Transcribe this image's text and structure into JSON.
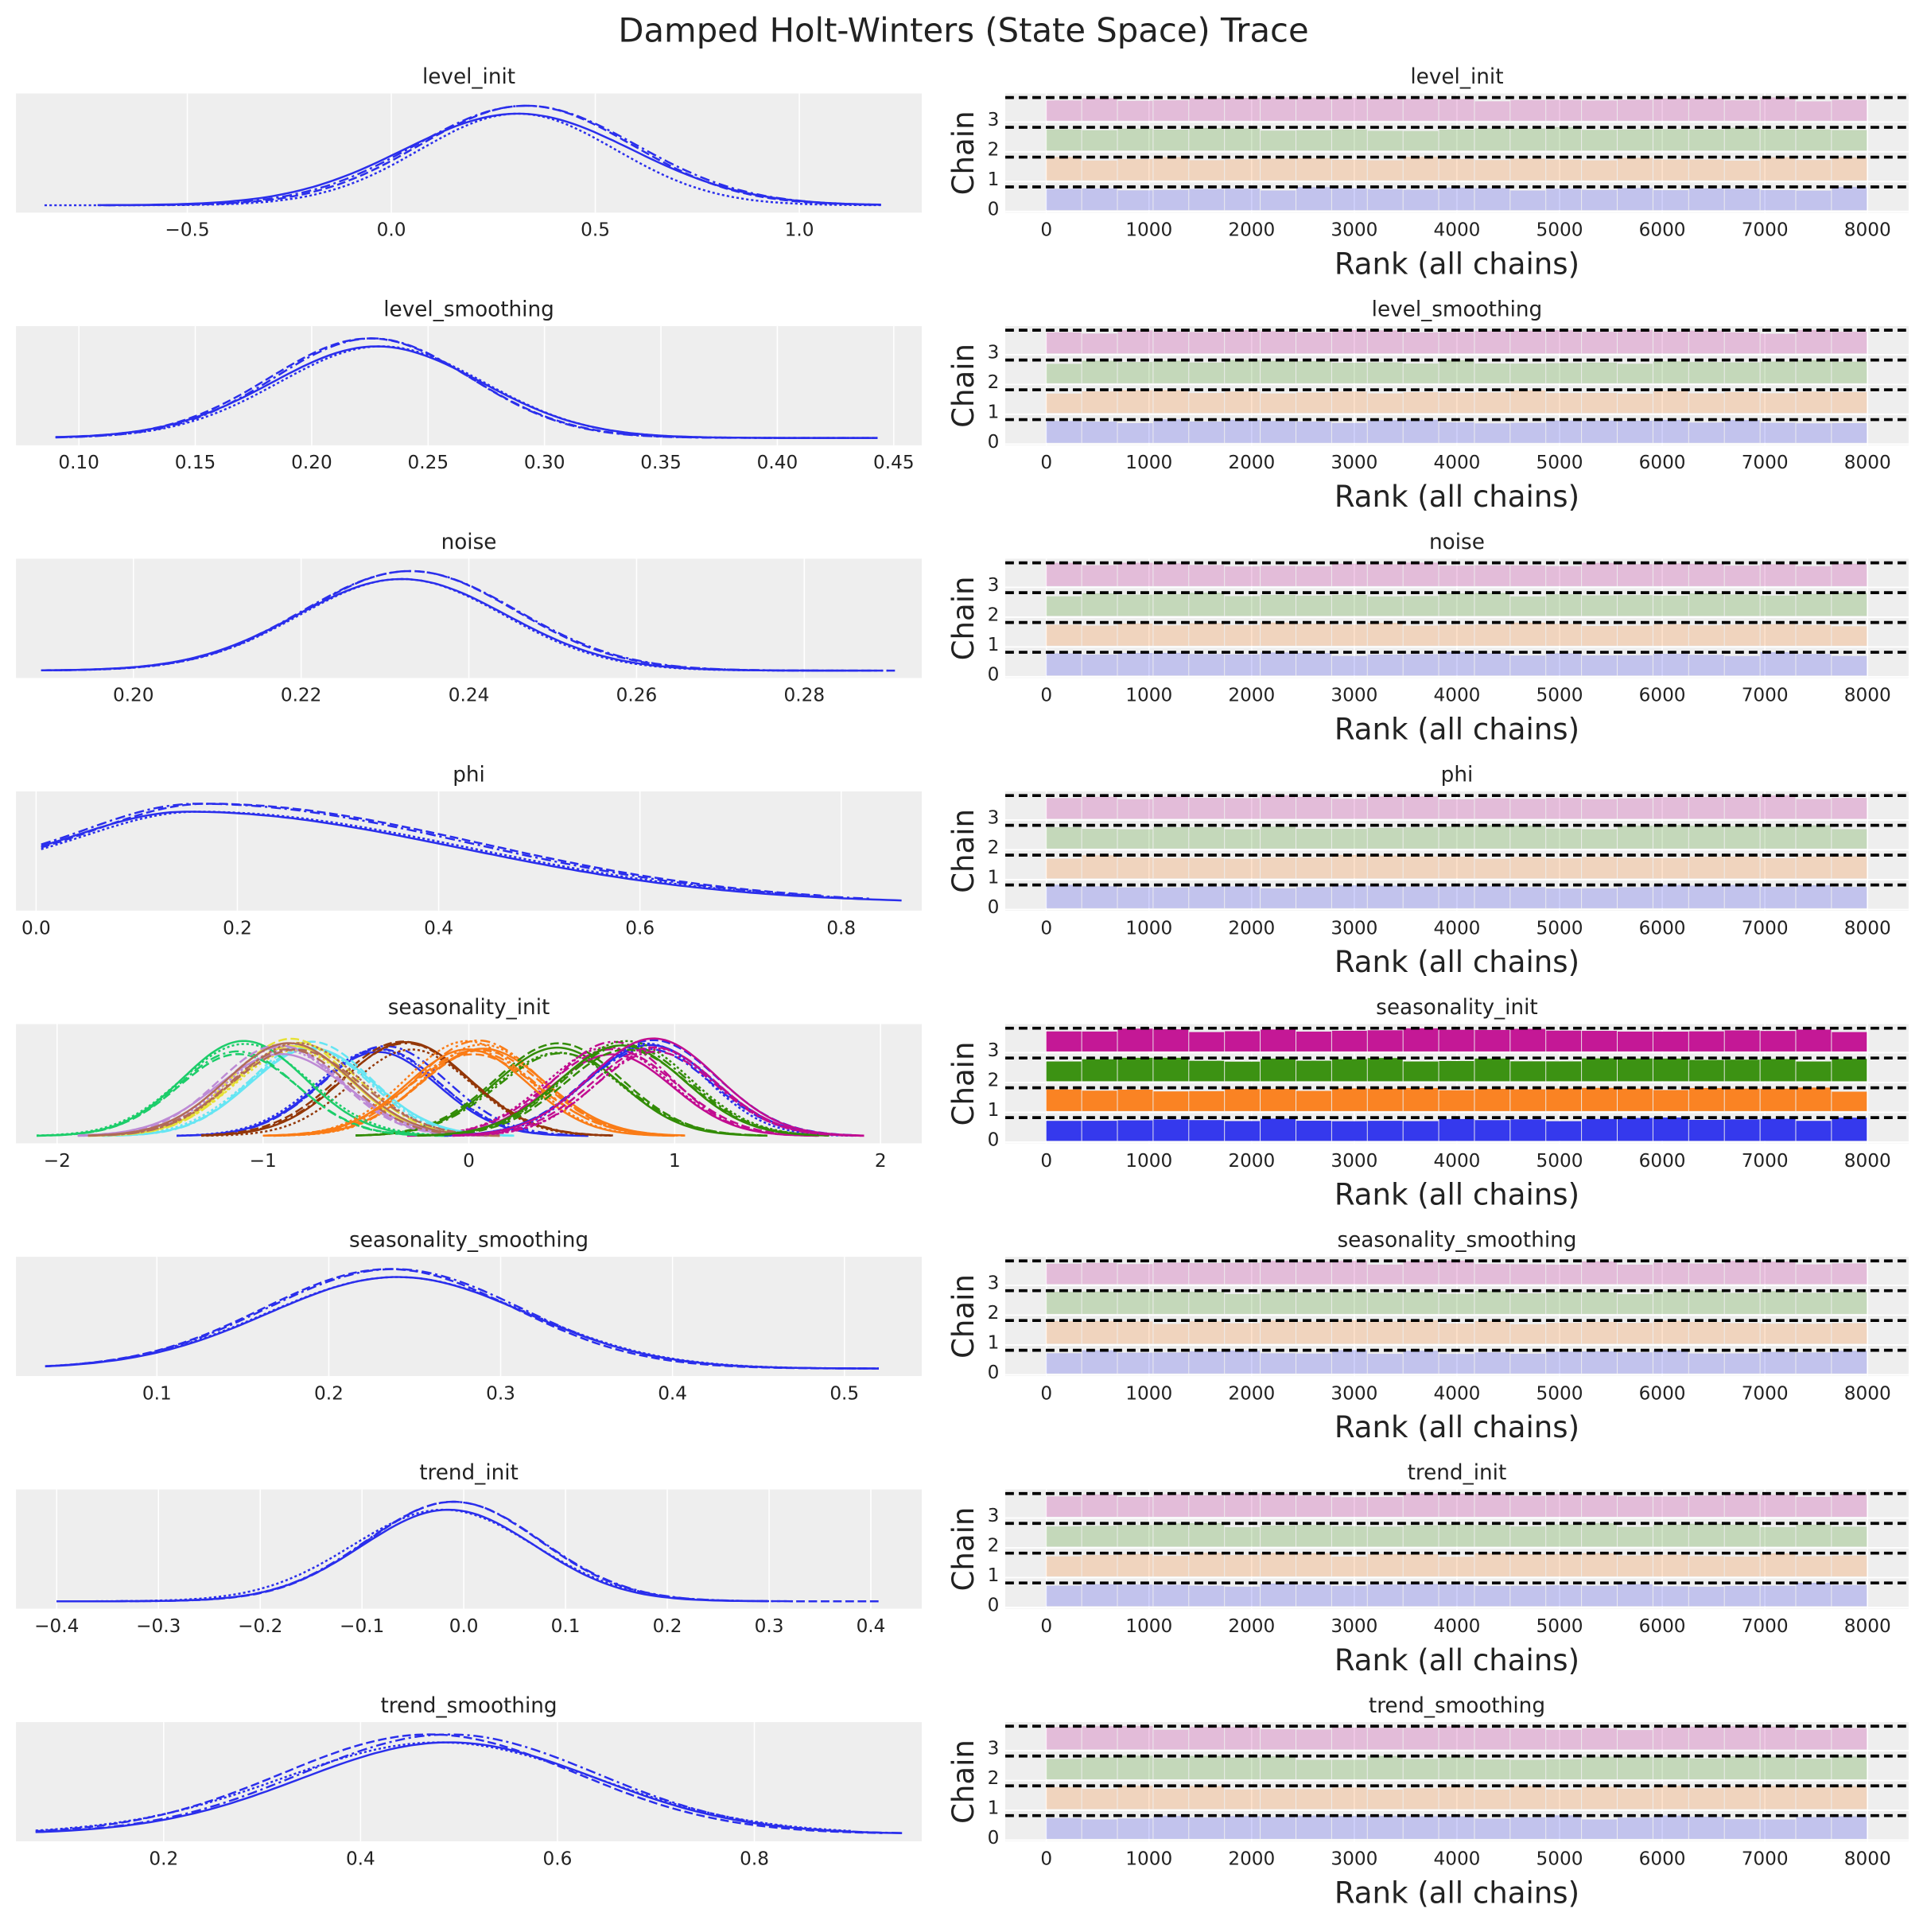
{
  "chart_data": {
    "type": "trace",
    "title": "Damped Holt-Winters (State Space) Trace",
    "colors": {
      "panel_bg": "#eeeeee",
      "grid": "#ffffff",
      "kde_default": "#2a2eec",
      "rank_chain_colors": [
        "#2a2eec",
        "#fa7c17",
        "#328c06",
        "#c10c90"
      ],
      "seasonality_palette": [
        "#2a2eec",
        "#fa7c17",
        "#328c06",
        "#c10c90",
        "#933708",
        "#65e5f3",
        "#e6e135",
        "#1ccd6a",
        "#bd8ad5",
        "#b16b57"
      ]
    },
    "rank_common": {
      "ylabel": "Chain",
      "xlabel": "Rank (all chains)",
      "xticks": [
        "0",
        "1000",
        "2000",
        "3000",
        "4000",
        "5000",
        "6000",
        "7000",
        "8000"
      ],
      "xtick_values": [
        0,
        1000,
        2000,
        3000,
        4000,
        5000,
        6000,
        7000,
        8000
      ],
      "xlim": [
        -400,
        8400
      ],
      "yticks": [
        "0",
        "1",
        "2",
        "3"
      ],
      "chains": 4,
      "bins": 23
    },
    "panels": [
      {
        "name": "level_init",
        "xlim": [
          -0.92,
          1.3
        ],
        "xticks": [
          -0.5,
          0.0,
          0.5,
          1.0
        ],
        "xtick_labels": [
          "−0.5",
          "0.0",
          "0.5",
          "1.0"
        ],
        "kde": [
          {
            "mu": 0.31,
            "sd": 0.28,
            "lo": -0.72,
            "hi": 1.2
          },
          {
            "mu": 0.33,
            "sd": 0.26,
            "lo": -0.7,
            "hi": 1.2
          },
          {
            "mu": 0.31,
            "sd": 0.24,
            "lo": -0.85,
            "hi": 1.2
          },
          {
            "mu": 0.33,
            "sd": 0.27,
            "lo": -0.7,
            "hi": 1.2
          }
        ],
        "rank_highlight": false
      },
      {
        "name": "level_smoothing",
        "xlim": [
          0.073,
          0.462
        ],
        "xticks": [
          0.1,
          0.15,
          0.2,
          0.25,
          0.3,
          0.35,
          0.4,
          0.45
        ],
        "xtick_labels": [
          "0.10",
          "0.15",
          "0.20",
          "0.25",
          "0.30",
          "0.35",
          "0.40",
          "0.45"
        ],
        "kde": [
          {
            "mu": 0.228,
            "sd": 0.045,
            "lo": 0.09,
            "hi": 0.443
          },
          {
            "mu": 0.225,
            "sd": 0.043,
            "lo": 0.09,
            "hi": 0.443
          },
          {
            "mu": 0.23,
            "sd": 0.044,
            "lo": 0.09,
            "hi": 0.443
          },
          {
            "mu": 0.226,
            "sd": 0.042,
            "lo": 0.09,
            "hi": 0.443
          }
        ],
        "rank_highlight": false
      },
      {
        "name": "noise",
        "xlim": [
          0.186,
          0.294
        ],
        "xticks": [
          0.2,
          0.22,
          0.24,
          0.26,
          0.28
        ],
        "xtick_labels": [
          "0.20",
          "0.22",
          "0.24",
          "0.26",
          "0.28"
        ],
        "kde": [
          {
            "mu": 0.232,
            "sd": 0.0125,
            "lo": 0.189,
            "hi": 0.288
          },
          {
            "mu": 0.233,
            "sd": 0.0125,
            "lo": 0.189,
            "hi": 0.291
          },
          {
            "mu": 0.232,
            "sd": 0.0122,
            "lo": 0.19,
            "hi": 0.285
          },
          {
            "mu": 0.233,
            "sd": 0.0127,
            "lo": 0.189,
            "hi": 0.29
          }
        ],
        "rank_highlight": false
      },
      {
        "name": "phi",
        "xlim": [
          -0.02,
          0.88
        ],
        "xticks": [
          0.0,
          0.2,
          0.4,
          0.6,
          0.8
        ],
        "xtick_labels": [
          "0.0",
          "0.2",
          "0.4",
          "0.6",
          "0.8"
        ],
        "kde": [
          {
            "mu": 0.15,
            "sd": 0.2,
            "lo": 0.005,
            "hi": 0.86,
            "skew": true
          },
          {
            "mu": 0.17,
            "sd": 0.2,
            "lo": 0.005,
            "hi": 0.78,
            "skew": true
          },
          {
            "mu": 0.16,
            "sd": 0.2,
            "lo": 0.005,
            "hi": 0.8,
            "skew": true
          },
          {
            "mu": 0.16,
            "sd": 0.2,
            "lo": 0.005,
            "hi": 0.83,
            "skew": true
          }
        ],
        "rank_highlight": false
      },
      {
        "name": "seasonality_init",
        "xlim": [
          -2.2,
          2.2
        ],
        "xticks": [
          -2,
          -1,
          0,
          1,
          2
        ],
        "xtick_labels": [
          "−2",
          "−1",
          "0",
          "1",
          "2"
        ],
        "seasonal_mus": [
          -0.42,
          0.05,
          0.45,
          0.7,
          -0.3,
          -0.78,
          -0.85,
          -1.1,
          -0.9,
          -0.85,
          0.88,
          0.0,
          0.75,
          0.92
        ],
        "seasonal_sd": 0.3,
        "rank_highlight": true
      },
      {
        "name": "seasonality_smoothing",
        "xlim": [
          0.018,
          0.545
        ],
        "xticks": [
          0.1,
          0.2,
          0.3,
          0.4,
          0.5
        ],
        "xtick_labels": [
          "0.1",
          "0.2",
          "0.3",
          "0.4",
          "0.5"
        ],
        "kde": [
          {
            "mu": 0.24,
            "sd": 0.075,
            "lo": 0.035,
            "hi": 0.52
          },
          {
            "mu": 0.235,
            "sd": 0.073,
            "lo": 0.035,
            "hi": 0.52
          },
          {
            "mu": 0.24,
            "sd": 0.076,
            "lo": 0.035,
            "hi": 0.52
          },
          {
            "mu": 0.238,
            "sd": 0.074,
            "lo": 0.035,
            "hi": 0.52
          }
        ],
        "rank_highlight": false
      },
      {
        "name": "trend_init",
        "xlim": [
          -0.44,
          0.45
        ],
        "xticks": [
          -0.4,
          -0.3,
          -0.2,
          -0.1,
          0.0,
          0.1,
          0.2,
          0.3,
          0.4
        ],
        "xtick_labels": [
          "−0.4",
          "−0.3",
          "−0.2",
          "−0.1",
          "0.0",
          "0.1",
          "0.2",
          "0.3",
          "0.4"
        ],
        "kde": [
          {
            "mu": -0.015,
            "sd": 0.085,
            "lo": -0.4,
            "hi": 0.3
          },
          {
            "mu": -0.01,
            "sd": 0.085,
            "lo": -0.4,
            "hi": 0.41
          },
          {
            "mu": -0.02,
            "sd": 0.09,
            "lo": -0.4,
            "hi": 0.3
          },
          {
            "mu": -0.01,
            "sd": 0.086,
            "lo": -0.4,
            "hi": 0.33
          }
        ],
        "rank_highlight": false
      },
      {
        "name": "trend_smoothing",
        "xlim": [
          0.05,
          0.97
        ],
        "xticks": [
          0.2,
          0.4,
          0.6,
          0.8
        ],
        "xtick_labels": [
          "0.2",
          "0.4",
          "0.6",
          "0.8"
        ],
        "kde": [
          {
            "mu": 0.49,
            "sd": 0.15,
            "lo": 0.07,
            "hi": 0.95
          },
          {
            "mu": 0.47,
            "sd": 0.15,
            "lo": 0.07,
            "hi": 0.93
          },
          {
            "mu": 0.48,
            "sd": 0.16,
            "lo": 0.07,
            "hi": 0.9
          },
          {
            "mu": 0.49,
            "sd": 0.15,
            "lo": 0.07,
            "hi": 0.95
          }
        ],
        "rank_highlight": false
      }
    ]
  }
}
